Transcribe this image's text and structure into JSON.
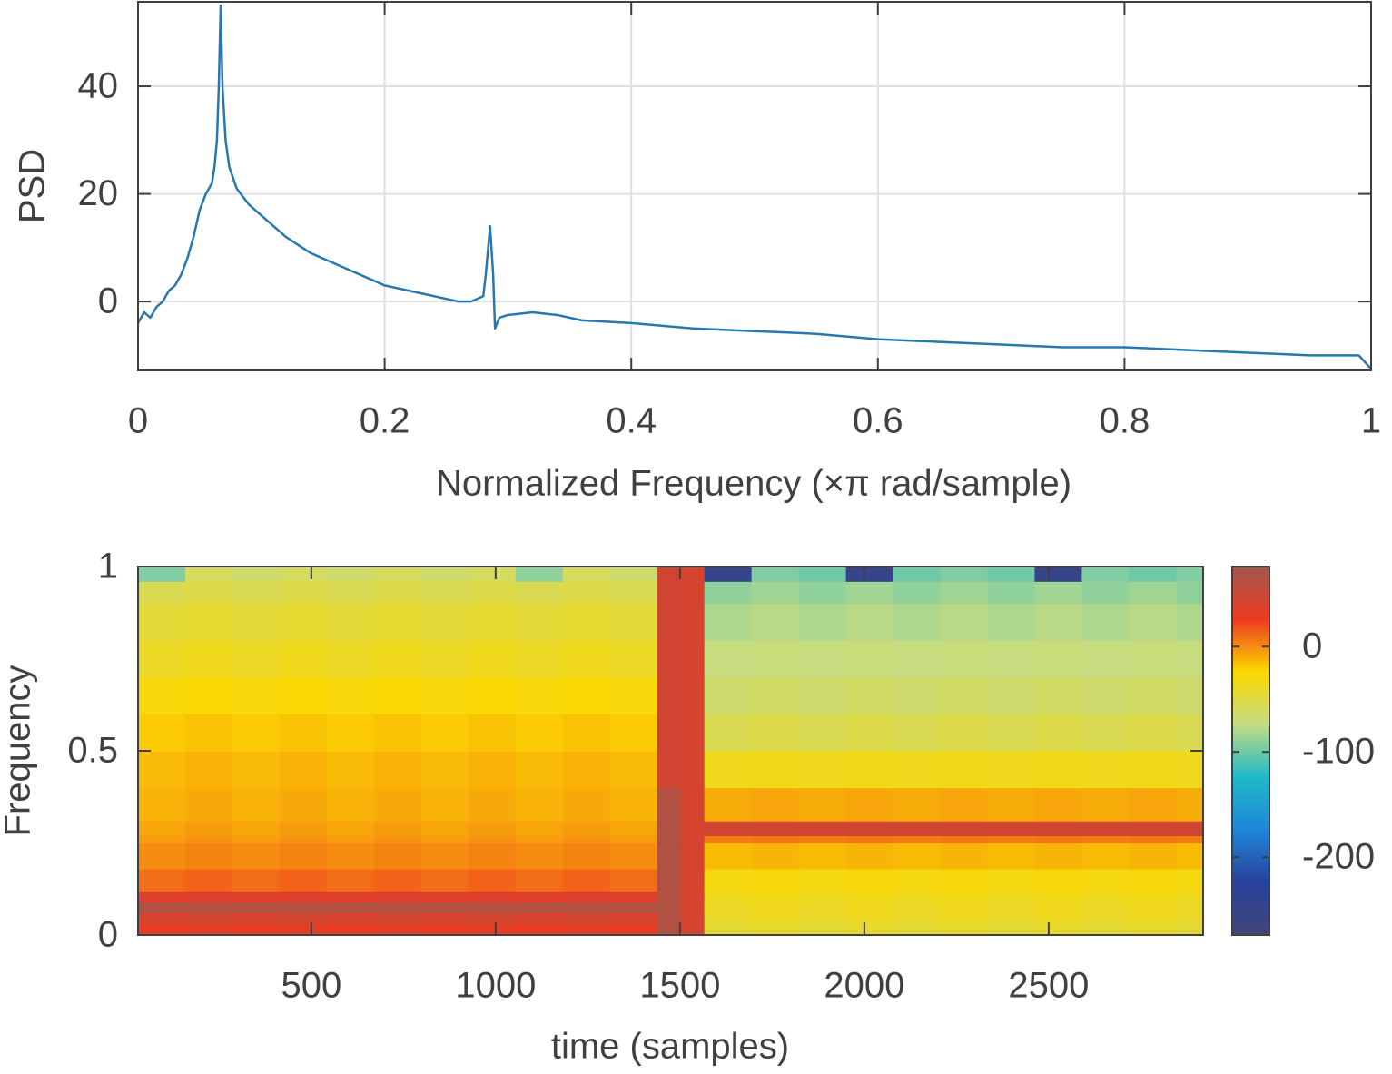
{
  "chart_data": [
    {
      "type": "line",
      "xlabel": "Normalized Frequency  (×π rad/sample)",
      "ylabel": "PSD",
      "xlim": [
        0,
        1
      ],
      "ylim": [
        -12.8,
        55.7
      ],
      "xticks": [
        0,
        0.2,
        0.4,
        0.6,
        0.8,
        1
      ],
      "yticks": [
        0,
        20,
        40
      ],
      "grid": true,
      "series": [
        {
          "color": "#2878b0",
          "x": [
            0,
            0.005,
            0.01,
            0.015,
            0.02,
            0.025,
            0.03,
            0.035,
            0.04,
            0.045,
            0.05,
            0.055,
            0.06,
            0.062,
            0.064,
            0.0655,
            0.067,
            0.0685,
            0.071,
            0.074,
            0.08,
            0.09,
            0.1,
            0.11,
            0.12,
            0.13,
            0.14,
            0.15,
            0.16,
            0.17,
            0.18,
            0.19,
            0.2,
            0.21,
            0.22,
            0.23,
            0.24,
            0.25,
            0.26,
            0.27,
            0.28,
            0.282,
            0.2855,
            0.288,
            0.2895,
            0.293,
            0.3,
            0.32,
            0.34,
            0.36,
            0.4,
            0.45,
            0.5,
            0.55,
            0.6,
            0.65,
            0.7,
            0.75,
            0.8,
            0.85,
            0.9,
            0.95,
            0.99,
            1
          ],
          "values": [
            -4,
            -2,
            -3,
            -1,
            0,
            2,
            3,
            5,
            8,
            12,
            17,
            20,
            22,
            25,
            30,
            40,
            55,
            40,
            30,
            25,
            21,
            18,
            16,
            14,
            12,
            10.5,
            9,
            8,
            7,
            6,
            5,
            4,
            3,
            2.5,
            2,
            1.5,
            1,
            0.5,
            0,
            0,
            1,
            5,
            14,
            5,
            -5,
            -3,
            -2.5,
            -2,
            -2.5,
            -3.5,
            -4,
            -5,
            -5.5,
            -6,
            -7,
            -7.5,
            -8,
            -8.5,
            -8.5,
            -9,
            -9.5,
            -10,
            -10,
            -12.5
          ]
        }
      ]
    },
    {
      "type": "heatmap",
      "xlabel": "time (samples)",
      "ylabel": "Frequency",
      "xlim": [
        30,
        2919
      ],
      "ylim": [
        0,
        1
      ],
      "xticks": [
        500,
        1000,
        1500,
        2000,
        2500
      ],
      "yticks": [
        0,
        0.5,
        1
      ],
      "x_bins": [
        30,
        158,
        286,
        414,
        542,
        670,
        798,
        926,
        1054,
        1182,
        1310,
        1438,
        1502,
        1566,
        1694,
        1822,
        1950,
        2078,
        2206,
        2334,
        2462,
        2590,
        2718,
        2846,
        2919
      ],
      "y_bins": [
        0,
        0.03,
        0.06,
        0.09,
        0.12,
        0.18,
        0.25,
        0.27,
        0.31,
        0.4,
        0.5,
        0.6,
        0.7,
        0.8,
        0.9,
        0.96,
        1
      ],
      "z": [
        [
          30,
          33,
          30,
          33,
          30,
          33,
          30,
          33,
          30,
          33,
          30,
          65,
          42,
          -45,
          -42,
          -45,
          -42,
          -45,
          -42,
          -45,
          -42,
          -45,
          -42,
          -45
        ],
        [
          40,
          42,
          40,
          42,
          40,
          42,
          40,
          42,
          40,
          42,
          40,
          65,
          42,
          -40,
          -37,
          -40,
          -37,
          -40,
          -37,
          -40,
          -37,
          -40,
          -37,
          -40
        ],
        [
          65,
          62,
          65,
          62,
          65,
          62,
          65,
          62,
          65,
          62,
          65,
          65,
          42,
          -38,
          -35,
          -38,
          -35,
          -38,
          -35,
          -38,
          -35,
          -38,
          -35,
          -38
        ],
        [
          35,
          37,
          35,
          37,
          35,
          37,
          35,
          37,
          35,
          37,
          35,
          65,
          42,
          -35,
          -32,
          -35,
          -32,
          -35,
          -32,
          -35,
          -32,
          -35,
          -32,
          -35
        ],
        [
          10,
          13,
          10,
          13,
          10,
          13,
          10,
          13,
          10,
          13,
          10,
          65,
          42,
          -30,
          -28,
          -30,
          -28,
          -30,
          -28,
          -30,
          -28,
          -30,
          -28,
          -30
        ],
        [
          0,
          3,
          0,
          3,
          0,
          3,
          0,
          3,
          0,
          3,
          0,
          65,
          42,
          -15,
          -13,
          -15,
          -13,
          -15,
          -13,
          -15,
          -13,
          -15,
          -13,
          -15
        ],
        [
          -5,
          -2,
          -5,
          -2,
          -5,
          -2,
          -5,
          -2,
          -5,
          -2,
          -5,
          65,
          42,
          5,
          7,
          5,
          7,
          5,
          7,
          5,
          7,
          5,
          7,
          5
        ],
        [
          -8,
          -5,
          -8,
          -5,
          -8,
          -5,
          -8,
          -5,
          -8,
          -5,
          -8,
          65,
          42,
          45,
          45,
          45,
          45,
          45,
          45,
          45,
          45,
          45,
          45,
          45
        ],
        [
          -12,
          -9,
          -12,
          -9,
          -12,
          -9,
          -12,
          -9,
          -12,
          -9,
          -12,
          65,
          42,
          -10,
          -8,
          -10,
          -8,
          -10,
          -8,
          -10,
          -8,
          -10,
          -8,
          -10
        ],
        [
          -15,
          -12,
          -15,
          -12,
          -15,
          -12,
          -15,
          -12,
          -15,
          -12,
          -15,
          45,
          42,
          -35,
          -33,
          -35,
          -33,
          -35,
          -33,
          -35,
          -33,
          -35,
          -33,
          -35
        ],
        [
          -20,
          -17,
          -20,
          -17,
          -20,
          -17,
          -20,
          -17,
          -20,
          -17,
          -20,
          45,
          42,
          -55,
          -52,
          -55,
          -52,
          -55,
          -52,
          -55,
          -52,
          -55,
          -52,
          -55
        ],
        [
          -28,
          -25,
          -28,
          -25,
          -28,
          -25,
          -28,
          -25,
          -28,
          -25,
          -28,
          45,
          42,
          -65,
          -62,
          -65,
          -62,
          -65,
          -62,
          -65,
          -62,
          -65,
          -62,
          -65
        ],
        [
          -38,
          -35,
          -38,
          -35,
          -38,
          -35,
          -38,
          -35,
          -38,
          -35,
          -38,
          45,
          42,
          -72,
          -70,
          -72,
          -70,
          -72,
          -70,
          -72,
          -70,
          -72,
          -70,
          -72
        ],
        [
          -45,
          -42,
          -45,
          -42,
          -45,
          -42,
          -45,
          -42,
          -45,
          -42,
          -45,
          45,
          42,
          -80,
          -77,
          -80,
          -77,
          -80,
          -77,
          -80,
          -77,
          -80,
          -77,
          -80
        ],
        [
          -55,
          -52,
          -55,
          -52,
          -55,
          -52,
          -55,
          -52,
          -55,
          -52,
          -55,
          45,
          42,
          -90,
          -85,
          -90,
          -85,
          -90,
          -85,
          -90,
          -85,
          -90,
          -85,
          -90
        ],
        [
          -95,
          -60,
          -65,
          -60,
          -65,
          -60,
          -65,
          -60,
          -90,
          -60,
          -65,
          45,
          42,
          -250,
          -95,
          -100,
          -250,
          -100,
          -95,
          -100,
          -250,
          -95,
          -100,
          -95
        ]
      ],
      "clim": [
        -274,
        76
      ],
      "colorbar_ticks": [
        -200,
        -100,
        0
      ],
      "colormap": [
        "#43467a",
        "#27419b",
        "#1f86d8",
        "#20b8c8",
        "#c4dc84",
        "#fcd800",
        "#ee3a22",
        "#a0584c"
      ]
    }
  ]
}
